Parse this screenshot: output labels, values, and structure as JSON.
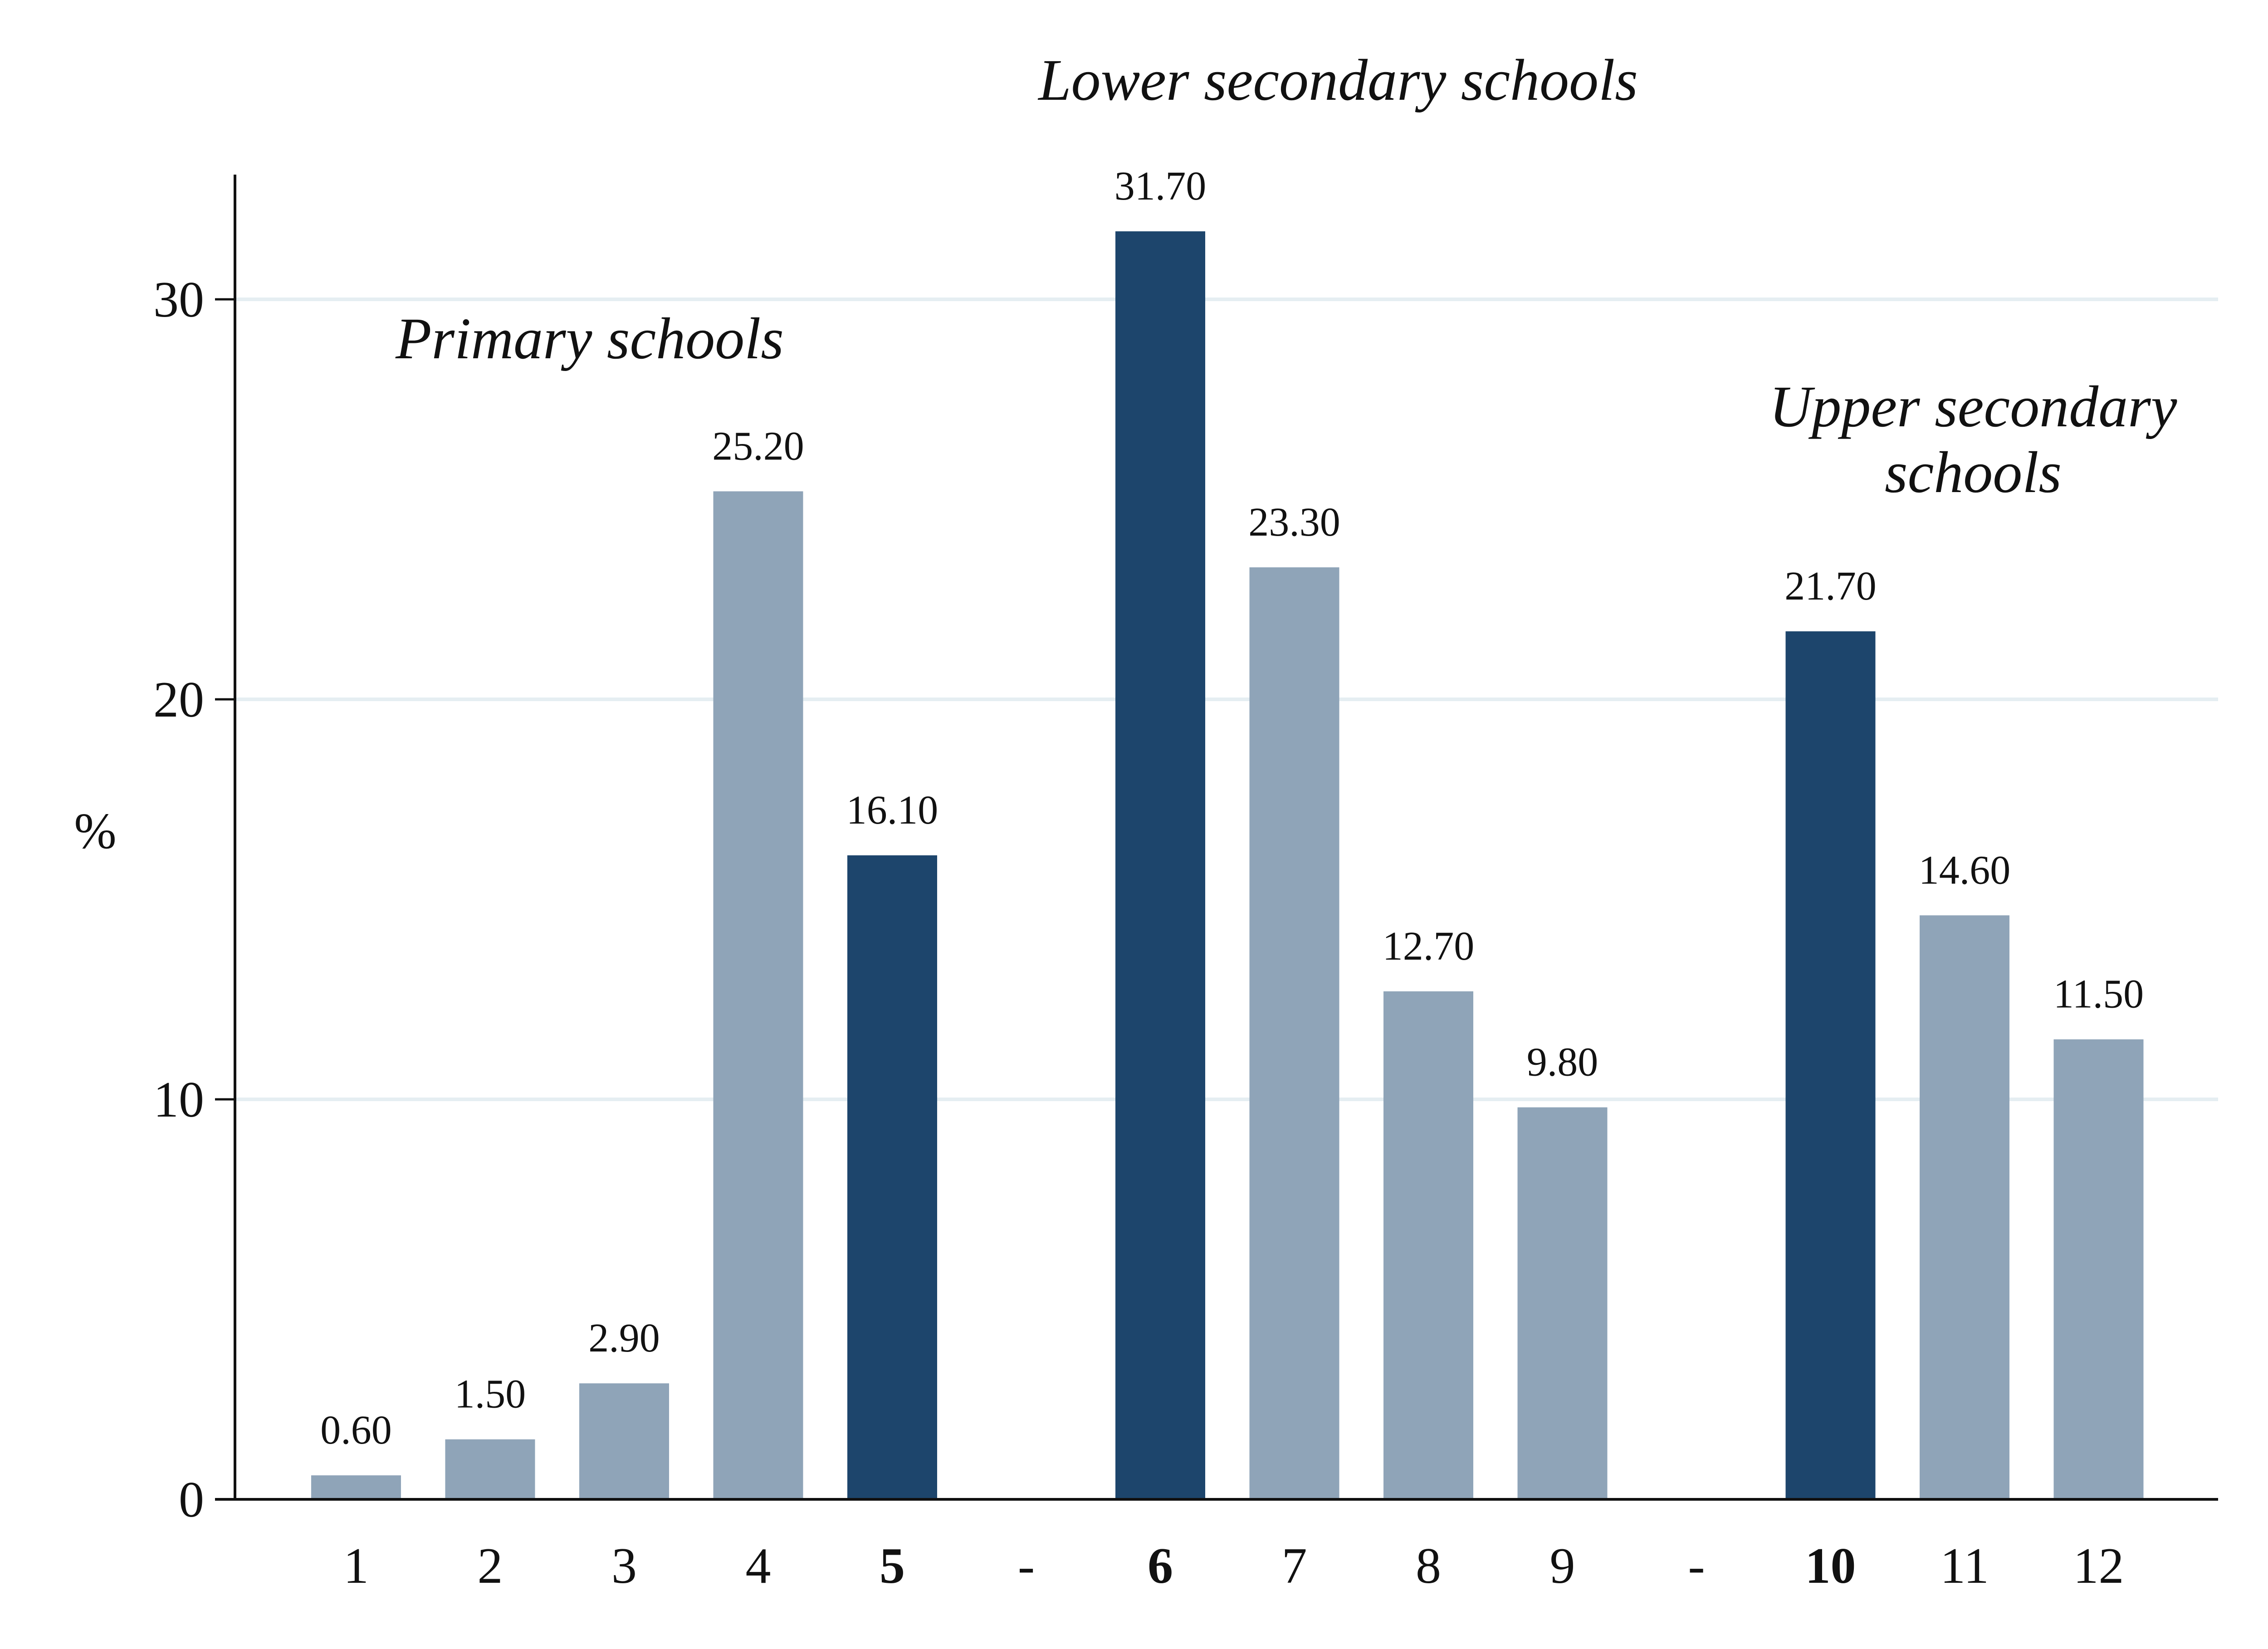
{
  "chart_data": {
    "type": "bar",
    "title": "",
    "xlabel": "",
    "ylabel": "%",
    "ylim": [
      0,
      33
    ],
    "yticks": [
      0,
      10,
      20,
      30
    ],
    "grid": true,
    "colors": {
      "highlight": "#1d456c",
      "normal": "#8fa4b8",
      "grid": "#e5eef2",
      "axis": "#111111"
    },
    "categories": [
      "1",
      "2",
      "3",
      "4",
      "5",
      "-",
      "6",
      "7",
      "8",
      "9",
      "-",
      "10",
      "11",
      "12"
    ],
    "values": [
      0.6,
      1.5,
      2.9,
      25.2,
      16.1,
      null,
      31.7,
      23.3,
      12.7,
      9.8,
      null,
      21.7,
      14.6,
      11.5
    ],
    "value_labels": [
      "0.60",
      "1.50",
      "2.90",
      "25.20",
      "16.10",
      "",
      "31.70",
      "23.30",
      "12.70",
      "9.80",
      "",
      "21.70",
      "14.60",
      "11.50"
    ],
    "highlighted": [
      "5",
      "6",
      "10"
    ],
    "group_labels": [
      {
        "lines": [
          "Primary schools"
        ]
      },
      {
        "lines": [
          "Lower secondary schools"
        ]
      },
      {
        "lines": [
          "Upper secondary",
          "schools"
        ]
      }
    ]
  }
}
